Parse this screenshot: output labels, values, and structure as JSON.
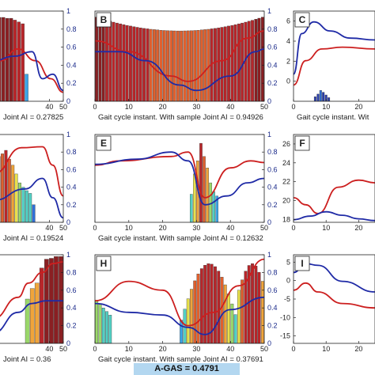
{
  "score": "A-GAS = 0.4791",
  "colors": {
    "red": "#cc1f1f",
    "blue": "#1f2aa6",
    "axis": "#222222"
  },
  "chart_data": [
    {
      "id": "A",
      "letter": "",
      "type": "bar+line",
      "xlim": [
        0,
        50
      ],
      "ylim_right": [
        0,
        1
      ],
      "xticks": [
        "40",
        "50"
      ],
      "yticks_right": [
        "0",
        "0.2",
        "0.4",
        "0.6",
        "0.8",
        "1"
      ],
      "caption": "Joint AI = 0.27825"
    },
    {
      "id": "B",
      "letter": "B",
      "type": "bar+line",
      "xlim": [
        0,
        50
      ],
      "ylim_right": [
        0,
        1
      ],
      "xticks": [
        "0",
        "10",
        "20",
        "30",
        "40",
        "50"
      ],
      "yticks_right": [
        "0",
        "0.2",
        "0.4",
        "0.6",
        "0.8",
        "1"
      ],
      "caption": "Gait cycle instant. With sample Joint AI = 0.94926"
    },
    {
      "id": "C",
      "letter": "C",
      "type": "bar+line",
      "xlim": [
        0,
        25
      ],
      "ylim": [
        -2,
        7
      ],
      "xticks": [
        "0",
        "10",
        "20"
      ],
      "yticks_left": [
        "0",
        "2",
        "4",
        "6"
      ],
      "caption": "Gait cycle instant. Wit"
    },
    {
      "id": "D",
      "letter": "",
      "type": "bar+line",
      "xlim": [
        0,
        50
      ],
      "ylim_right": [
        0,
        1
      ],
      "xticks": [
        "40",
        "50"
      ],
      "yticks_right": [
        "0",
        "0.2",
        "0.4",
        "0.6",
        "0.8",
        "1"
      ],
      "caption": "Joint AI = 0.19524"
    },
    {
      "id": "E",
      "letter": "E",
      "type": "bar+line",
      "xlim": [
        0,
        50
      ],
      "ylim_right": [
        0,
        1
      ],
      "xticks": [
        "0",
        "10",
        "20",
        "30",
        "40",
        "50"
      ],
      "yticks_right": [
        "0",
        "0.2",
        "0.4",
        "0.6",
        "0.8",
        "1"
      ],
      "caption": "Gait cycle instant. With sample Joint AI = 0.12632"
    },
    {
      "id": "F",
      "letter": "F",
      "type": "bar+line",
      "xlim": [
        0,
        25
      ],
      "ylim": [
        17.7,
        27
      ],
      "xticks": [
        "0",
        "10",
        "20"
      ],
      "yticks_left": [
        "18",
        "20",
        "22",
        "24",
        "26"
      ],
      "caption": ""
    },
    {
      "id": "G",
      "letter": "",
      "type": "bar+line",
      "xlim": [
        0,
        50
      ],
      "ylim_right": [
        0,
        1
      ],
      "xticks": [
        "40",
        "50"
      ],
      "yticks_right": [
        "0",
        "0.2",
        "0.4",
        "0.6",
        "0.8",
        "1"
      ],
      "caption": "Joint AI = 0.36"
    },
    {
      "id": "H",
      "letter": "H",
      "type": "bar+line",
      "xlim": [
        0,
        50
      ],
      "ylim_right": [
        0,
        1
      ],
      "xticks": [
        "0",
        "10",
        "20",
        "30",
        "40",
        "50"
      ],
      "yticks_right": [
        "0",
        "0.2",
        "0.4",
        "0.6",
        "0.8",
        "1"
      ],
      "caption": "Gait cycle instant. With sample Joint AI = 0.37691"
    },
    {
      "id": "I",
      "letter": "I",
      "type": "bar+line",
      "xlim": [
        0,
        25
      ],
      "ylim": [
        -17,
        7
      ],
      "xticks": [
        "0",
        "10",
        "20"
      ],
      "yticks_left": [
        "-15",
        "-10",
        "-5",
        "0",
        "5"
      ],
      "caption": ""
    }
  ]
}
